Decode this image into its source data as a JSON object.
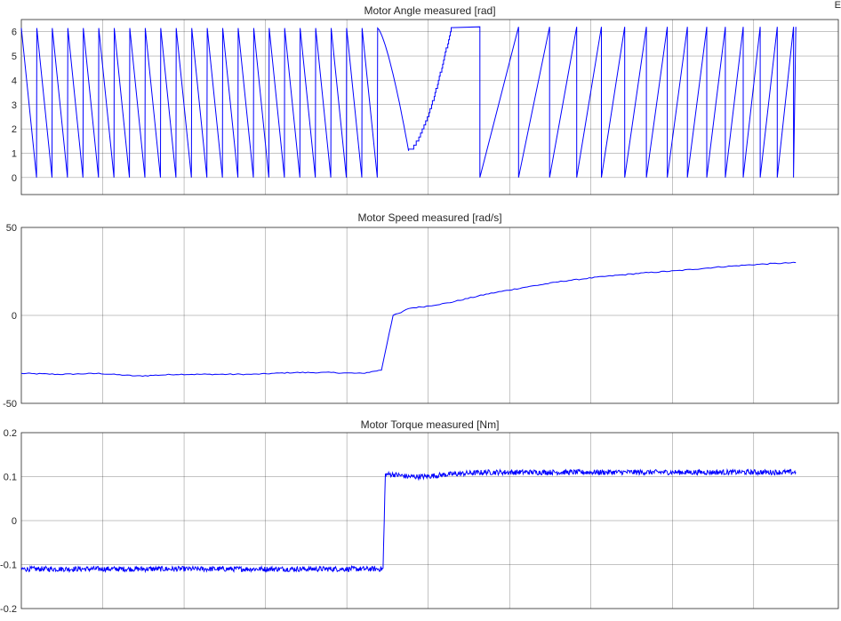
{
  "corner_mark": "E",
  "colors": {
    "line": "#0000ff",
    "grid": "#262626",
    "axis": "#262626",
    "background": "#ffffff"
  },
  "chart_data": [
    {
      "type": "line",
      "title": "Motor Angle measured [rad]",
      "xlabel": "",
      "ylabel": "",
      "xlim": [
        0,
        1
      ],
      "ylim": [
        -0.7,
        6.5
      ],
      "yticks": [
        "0",
        "1",
        "2",
        "3",
        "4",
        "5",
        "6"
      ],
      "ytick_values": [
        0,
        1,
        2,
        3,
        4,
        5,
        6
      ],
      "x_gridlines": 10,
      "grid": true,
      "x_tick_labels_shown": false,
      "series": [
        {
          "description_kind": "wrapped-angle",
          "segments": [
            {
              "x_start": 0.0,
              "x_end": 0.0,
              "y": 6.1
            },
            {
              "x_start": 0.0,
              "x_end": 0.04,
              "y_from": 6.1,
              "y_to": 0.0,
              "kind": "sawtooth-down",
              "cycles": 1
            },
            {
              "x_start": 0.04,
              "x_end": 0.46,
              "y_from": 6.2,
              "y_to": 0.0,
              "kind": "sawtooth-down",
              "cycles": 21
            },
            {
              "x_start": 0.46,
              "x_end": 0.5,
              "kind": "smooth-decay",
              "y_from": 6.2,
              "y_to": 1.1
            },
            {
              "x_start": 0.5,
              "x_end": 0.555,
              "kind": "stepped-rise",
              "y_from": 1.1,
              "y_to": 6.2
            },
            {
              "x_start": 0.555,
              "x_end": 1.0,
              "y_from": 0.0,
              "y_to": 6.2,
              "kind": "sawtooth-up",
              "period_start": 0.05,
              "period_end": 0.02
            }
          ]
        }
      ]
    },
    {
      "type": "line",
      "title": "Motor Speed measured [rad/s]",
      "xlabel": "",
      "ylabel": "",
      "xlim": [
        0,
        1
      ],
      "ylim": [
        -50,
        50
      ],
      "yticks": [
        "-50",
        "0",
        "50"
      ],
      "ytick_values": [
        -50,
        0,
        50
      ],
      "x_gridlines": 10,
      "grid": true,
      "x_tick_labels_shown": false,
      "series": [
        {
          "x": [
            0,
            0.05,
            0.1,
            0.15,
            0.2,
            0.25,
            0.3,
            0.35,
            0.4,
            0.44,
            0.465,
            0.475,
            0.48,
            0.49,
            0.5,
            0.52,
            0.55,
            0.6,
            0.65,
            0.7,
            0.75,
            0.8,
            0.85,
            0.9,
            0.95,
            1.0
          ],
          "y": [
            -33,
            -33.5,
            -33,
            -34.5,
            -33.5,
            -33.5,
            -33.5,
            -32.5,
            -32.5,
            -33,
            -31,
            -10,
            0,
            1.5,
            4,
            5,
            7,
            12,
            16,
            19.5,
            22,
            24,
            25.5,
            27.5,
            29,
            30
          ]
        }
      ]
    },
    {
      "type": "line",
      "title": "Motor Torque measured [Nm]",
      "xlabel": "",
      "ylabel": "",
      "xlim": [
        0,
        1
      ],
      "ylim": [
        -0.2,
        0.2
      ],
      "yticks": [
        "-0.2",
        "-0.1",
        "0",
        "0.1",
        "0.2"
      ],
      "ytick_values": [
        -0.2,
        -0.1,
        0,
        0.1,
        0.2
      ],
      "x_gridlines": 10,
      "grid": true,
      "x_tick_labels_shown": false,
      "series": [
        {
          "x": [
            0,
            0.1,
            0.2,
            0.3,
            0.4,
            0.467,
            0.47,
            0.48,
            0.5,
            0.52,
            0.55,
            0.6,
            0.7,
            0.8,
            0.9,
            1.0
          ],
          "y": [
            -0.11,
            -0.11,
            -0.11,
            -0.11,
            -0.11,
            -0.11,
            0.105,
            0.105,
            0.1,
            0.1,
            0.105,
            0.11,
            0.11,
            0.11,
            0.11,
            0.11
          ],
          "noise_amplitude": 0.006
        }
      ]
    }
  ]
}
